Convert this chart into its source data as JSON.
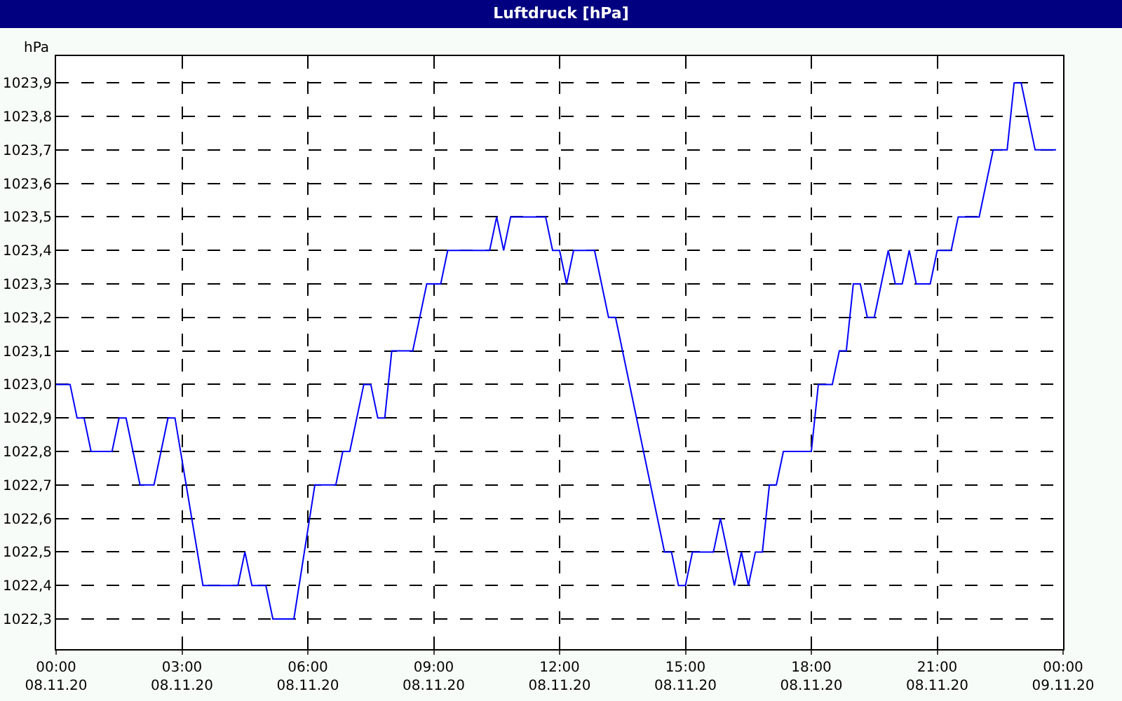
{
  "chart_data": {
    "type": "line",
    "title": "Luftdruck [hPa]",
    "ylabel": "hPa",
    "x": [
      "--11-08T00:00",
      "--11-08T00:20",
      "--11-08T00:30",
      "--11-08T00:40",
      "--11-08T00:50",
      "--11-08T01:20",
      "--11-08T01:30",
      "--11-08T01:40",
      "--11-08T02:00",
      "--11-08T02:20",
      "--11-08T02:40",
      "--11-08T02:50",
      "--11-08T03:30",
      "--11-08T04:20",
      "--11-08T04:30",
      "--11-08T04:40",
      "--11-08T05:00",
      "--11-08T05:10",
      "--11-08T05:40",
      "--11-08T06:10",
      "--11-08T06:40",
      "--11-08T06:50",
      "--11-08T07:00",
      "--11-08T07:20",
      "--11-08T07:30",
      "--11-08T07:40",
      "--11-08T07:50",
      "--11-08T08:00",
      "--11-08T08:30",
      "--11-08T08:50",
      "--11-08T09:10",
      "--11-08T09:20",
      "--11-08T10:20",
      "--11-08T10:30",
      "--11-08T10:40",
      "--11-08T10:50",
      "--11-08T11:40",
      "--11-08T11:50",
      "--11-08T12:00",
      "--11-08T12:10",
      "--11-08T12:20",
      "--11-08T12:50",
      "--11-08T13:10",
      "--11-08T13:20",
      "--11-08T14:30",
      "--11-08T14:40",
      "--11-08T14:50",
      "--11-08T15:00",
      "--11-08T15:10",
      "--11-08T15:40",
      "--11-08T15:50",
      "--11-08T16:10",
      "--11-08T16:20",
      "--11-08T16:30",
      "--11-08T16:40",
      "--11-08T16:50",
      "--11-08T17:00",
      "--11-08T17:10",
      "--11-08T17:20",
      "--11-08T17:30",
      "--11-08T18:00",
      "--11-08T18:10",
      "--11-08T18:30",
      "--11-08T18:40",
      "--11-08T18:50",
      "--11-08T19:00",
      "--11-08T19:10",
      "--11-08T19:20",
      "--11-08T19:30",
      "--11-08T19:50",
      "--11-08T20:00",
      "--11-08T20:10",
      "--11-08T20:20",
      "--11-08T20:30",
      "--11-08T20:50",
      "--11-08T21:00",
      "--11-08T21:20",
      "--11-08T21:30",
      "--11-08T22:00",
      "--11-08T22:20",
      "--11-08T22:40",
      "--11-08T22:50",
      "--11-08T23:00",
      "--11-08T23:20",
      "--11-08T23:50"
    ],
    "series": [
      {
        "color": "#0000ff",
        "values": [
          1023.0,
          1023.0,
          1022.9,
          1022.9,
          1022.8,
          1022.8,
          1022.9,
          1022.9,
          1022.7,
          1022.7,
          1022.9,
          1022.9,
          1022.4,
          1022.4,
          1022.5,
          1022.4,
          1022.4,
          1022.3,
          1022.3,
          1022.7,
          1022.7,
          1022.8,
          1022.8,
          1023.0,
          1023.0,
          1022.9,
          1022.9,
          1023.1,
          1023.1,
          1023.3,
          1023.3,
          1023.4,
          1023.4,
          1023.5,
          1023.4,
          1023.5,
          1023.5,
          1023.4,
          1023.4,
          1023.3,
          1023.4,
          1023.4,
          1023.2,
          1023.2,
          1022.5,
          1022.5,
          1022.4,
          1022.4,
          1022.5,
          1022.5,
          1022.6,
          1022.4,
          1022.5,
          1022.4,
          1022.5,
          1022.5,
          1022.7,
          1022.7,
          1022.8,
          1022.8,
          1022.8,
          1023.0,
          1023.0,
          1023.1,
          1023.1,
          1023.3,
          1023.3,
          1023.2,
          1023.2,
          1023.4,
          1023.3,
          1023.3,
          1023.4,
          1023.3,
          1023.3,
          1023.4,
          1023.4,
          1023.5,
          1023.5,
          1023.7,
          1023.7,
          1023.9,
          1023.9,
          1023.7,
          1023.7
        ]
      }
    ],
    "xlim": [
      "--11-08T00:00",
      "--11-09T00:00"
    ],
    "xticks": [
      {
        "value": "--11-08T00:00",
        "label": "00:00\n08.11.20"
      },
      {
        "value": "--11-08T03:00",
        "label": "03:00\n08.11.20"
      },
      {
        "value": "--11-08T06:00",
        "label": "06:00\n08.11.20"
      },
      {
        "value": "--11-08T09:00",
        "label": "09:00\n08.11.20"
      },
      {
        "value": "--11-08T12:00",
        "label": "12:00\n08.11.20"
      },
      {
        "value": "--11-08T15:00",
        "label": "15:00\n08.11.20"
      },
      {
        "value": "--11-08T18:00",
        "label": "18:00\n08.11.20"
      },
      {
        "value": "--11-08T21:00",
        "label": "21:00\n08.11.20"
      },
      {
        "value": "--11-09T00:00",
        "label": "00:00\n09.11.20"
      }
    ],
    "ylim": [
      1022.21,
      1023.98
    ],
    "yticks": [
      {
        "value": 1022.3,
        "label": "1022,3"
      },
      {
        "value": 1022.4,
        "label": "1022,4"
      },
      {
        "value": 1022.5,
        "label": "1022,5"
      },
      {
        "value": 1022.6,
        "label": "1022,6"
      },
      {
        "value": 1022.7,
        "label": "1022,7"
      },
      {
        "value": 1022.8,
        "label": "1022,8"
      },
      {
        "value": 1022.9,
        "label": "1022,9"
      },
      {
        "value": 1023.0,
        "label": "1023,0"
      },
      {
        "value": 1023.1,
        "label": "1023,1"
      },
      {
        "value": 1023.2,
        "label": "1023,2"
      },
      {
        "value": 1023.3,
        "label": "1023,3"
      },
      {
        "value": 1023.4,
        "label": "1023,4"
      },
      {
        "value": 1023.5,
        "label": "1023,5"
      },
      {
        "value": 1023.6,
        "label": "1023,6"
      },
      {
        "value": 1023.7,
        "label": "1023,7"
      },
      {
        "value": 1023.8,
        "label": "1023,8"
      },
      {
        "value": 1023.9,
        "label": "1023,9"
      }
    ],
    "grid": true,
    "line_style": "solid"
  }
}
